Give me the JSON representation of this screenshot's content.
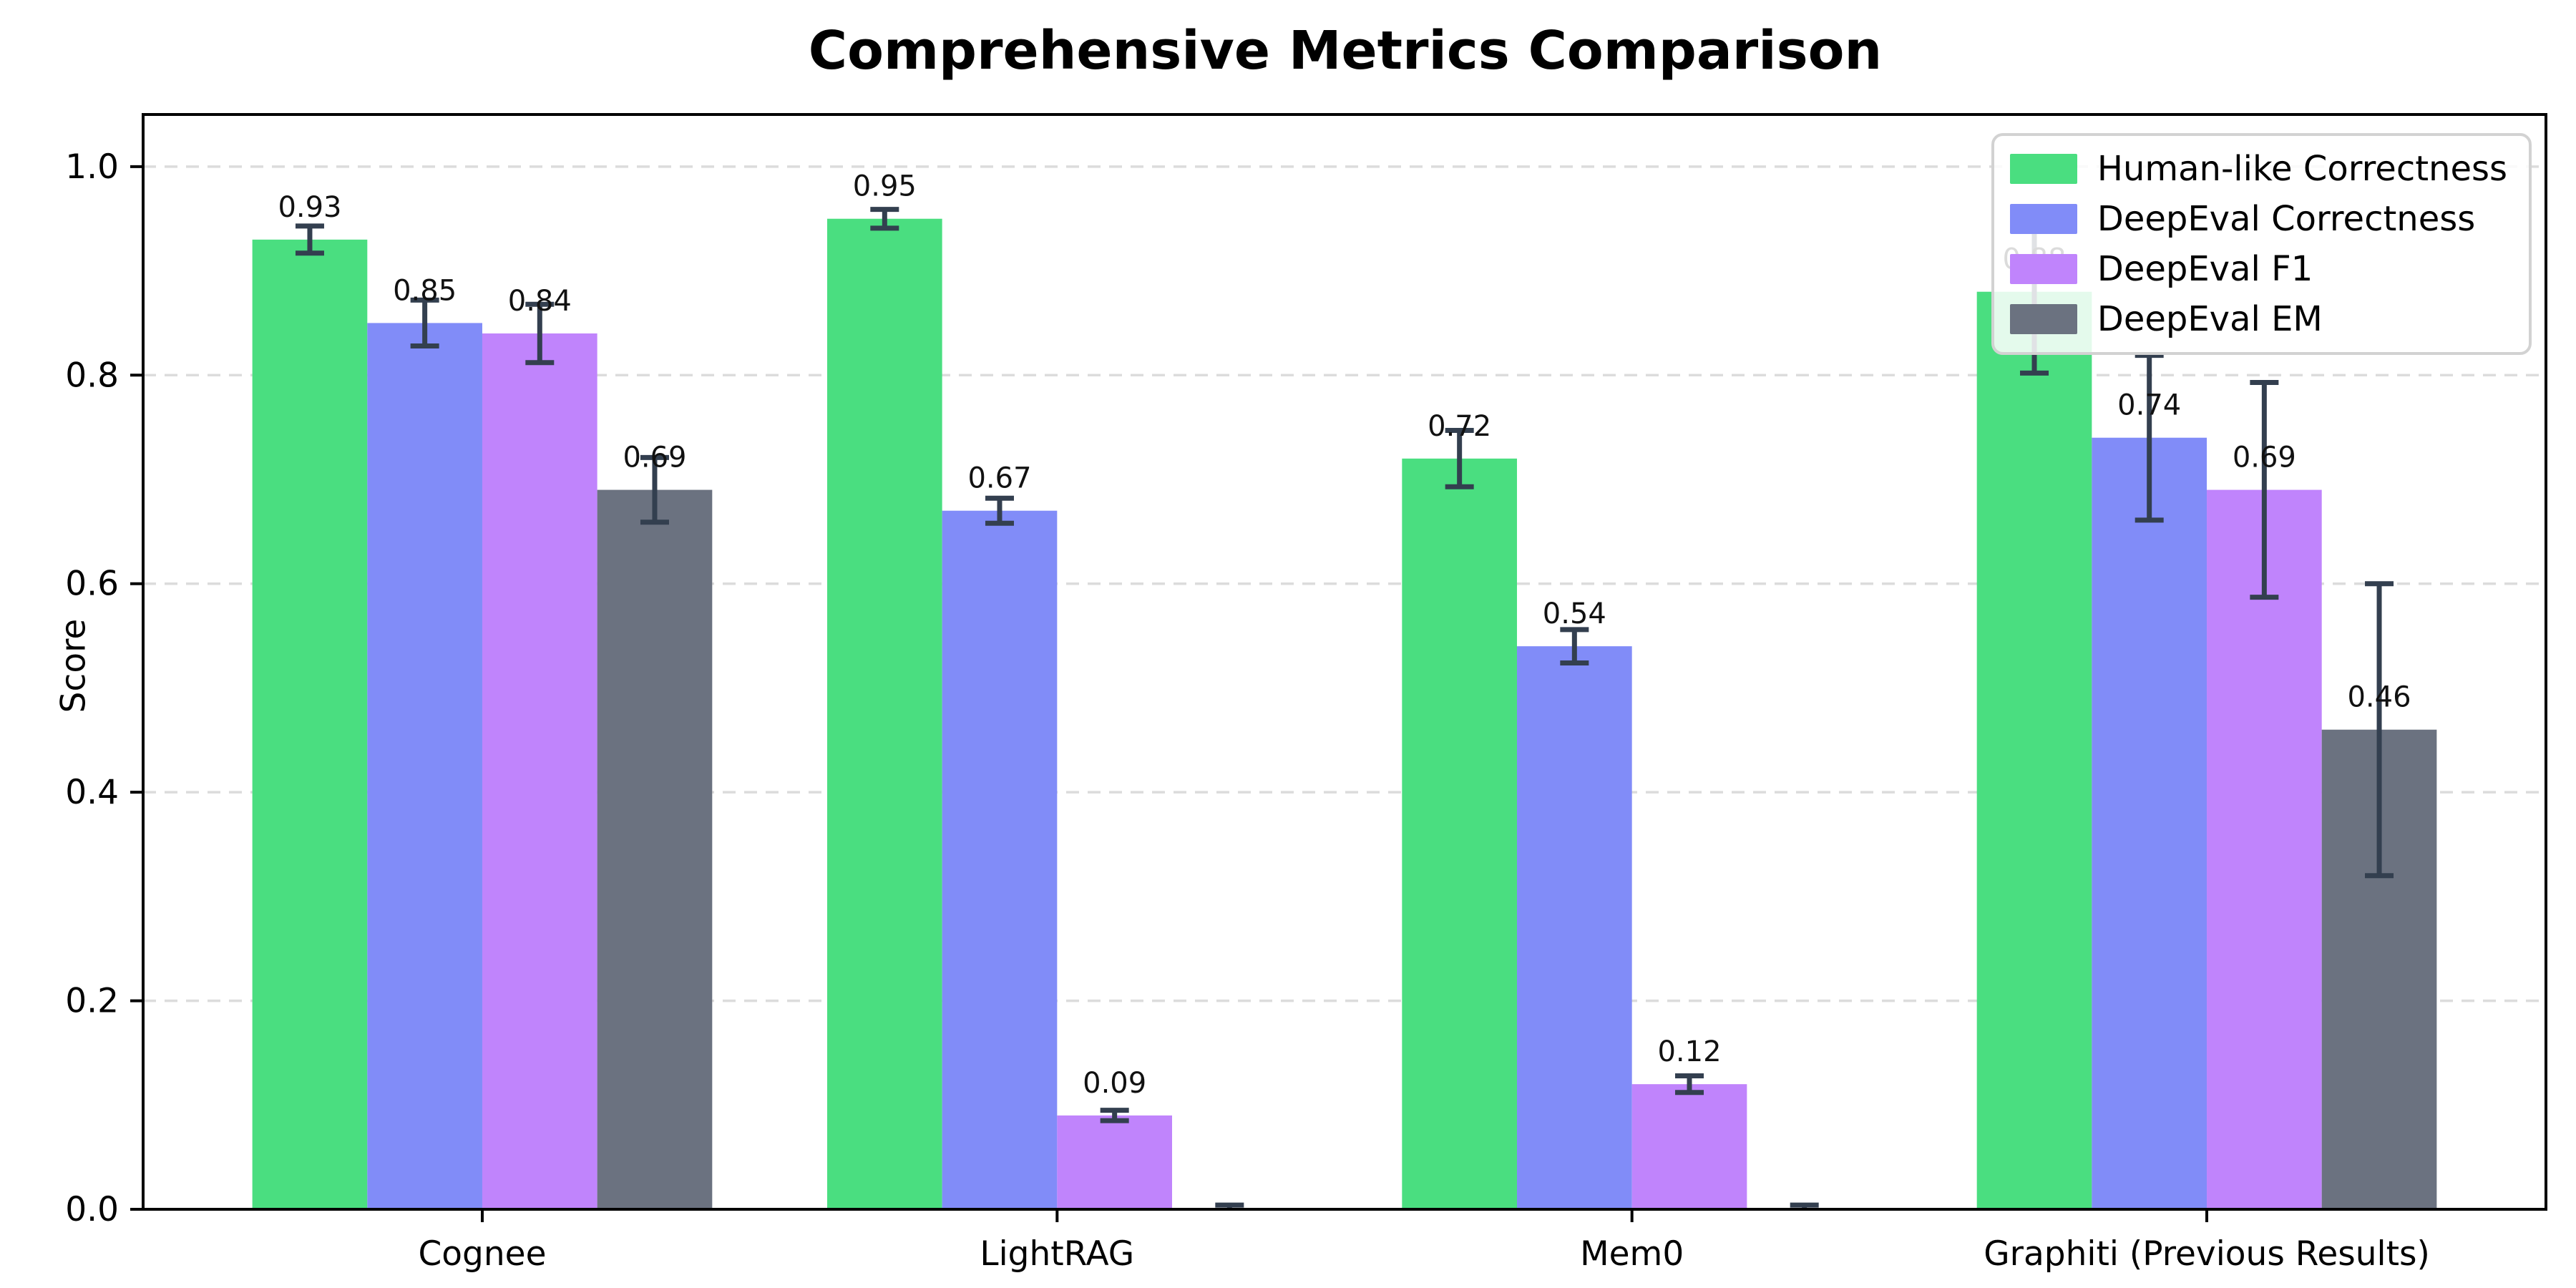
{
  "chart_data": {
    "type": "bar",
    "title": "Comprehensive Metrics Comparison",
    "ylabel": "Score",
    "xlabel": "",
    "categories": [
      "Cognee",
      "LightRAG",
      "Mem0",
      "Graphiti (Previous Results)"
    ],
    "series": [
      {
        "name": "Human-like Correctness",
        "color": "#4ade80",
        "values": [
          0.93,
          0.95,
          0.72,
          0.88
        ],
        "errors": [
          0.013,
          0.009,
          0.027,
          0.078
        ],
        "labels": [
          "0.93",
          "0.95",
          "0.72",
          "0.88"
        ]
      },
      {
        "name": "DeepEval Correctness",
        "color": "#818cf8",
        "values": [
          0.85,
          0.67,
          0.54,
          0.74
        ],
        "errors": [
          0.022,
          0.012,
          0.016,
          0.079
        ],
        "labels": [
          "0.85",
          "0.67",
          "0.54",
          "0.74"
        ]
      },
      {
        "name": "DeepEval F1",
        "color": "#c084fc",
        "values": [
          0.84,
          0.09,
          0.12,
          0.69
        ],
        "errors": [
          0.028,
          0.005,
          0.008,
          0.103
        ],
        "labels": [
          "0.84",
          "0.09",
          "0.12",
          "0.69"
        ]
      },
      {
        "name": "DeepEval EM",
        "color": "#6b7280",
        "values": [
          0.69,
          0.0,
          0.0,
          0.46
        ],
        "errors": [
          0.031,
          0.004,
          0.004,
          0.14
        ],
        "labels": [
          "0.69",
          "",
          "",
          "0.46"
        ]
      }
    ],
    "ytick_values": [
      0.0,
      0.2,
      0.4,
      0.6,
      0.8,
      1.0
    ],
    "ytick_labels": [
      "0.0",
      "0.2",
      "0.4",
      "0.6",
      "0.8",
      "1.0"
    ],
    "ylim": [
      0,
      1.05
    ],
    "grid": {
      "horizontal": true,
      "style": "dashed",
      "color": "#dcdcdc"
    },
    "legend_position": "upper right",
    "value_label_offset": 0.022,
    "error_bar_color": "#333f4f",
    "axis_color": "#000000"
  }
}
